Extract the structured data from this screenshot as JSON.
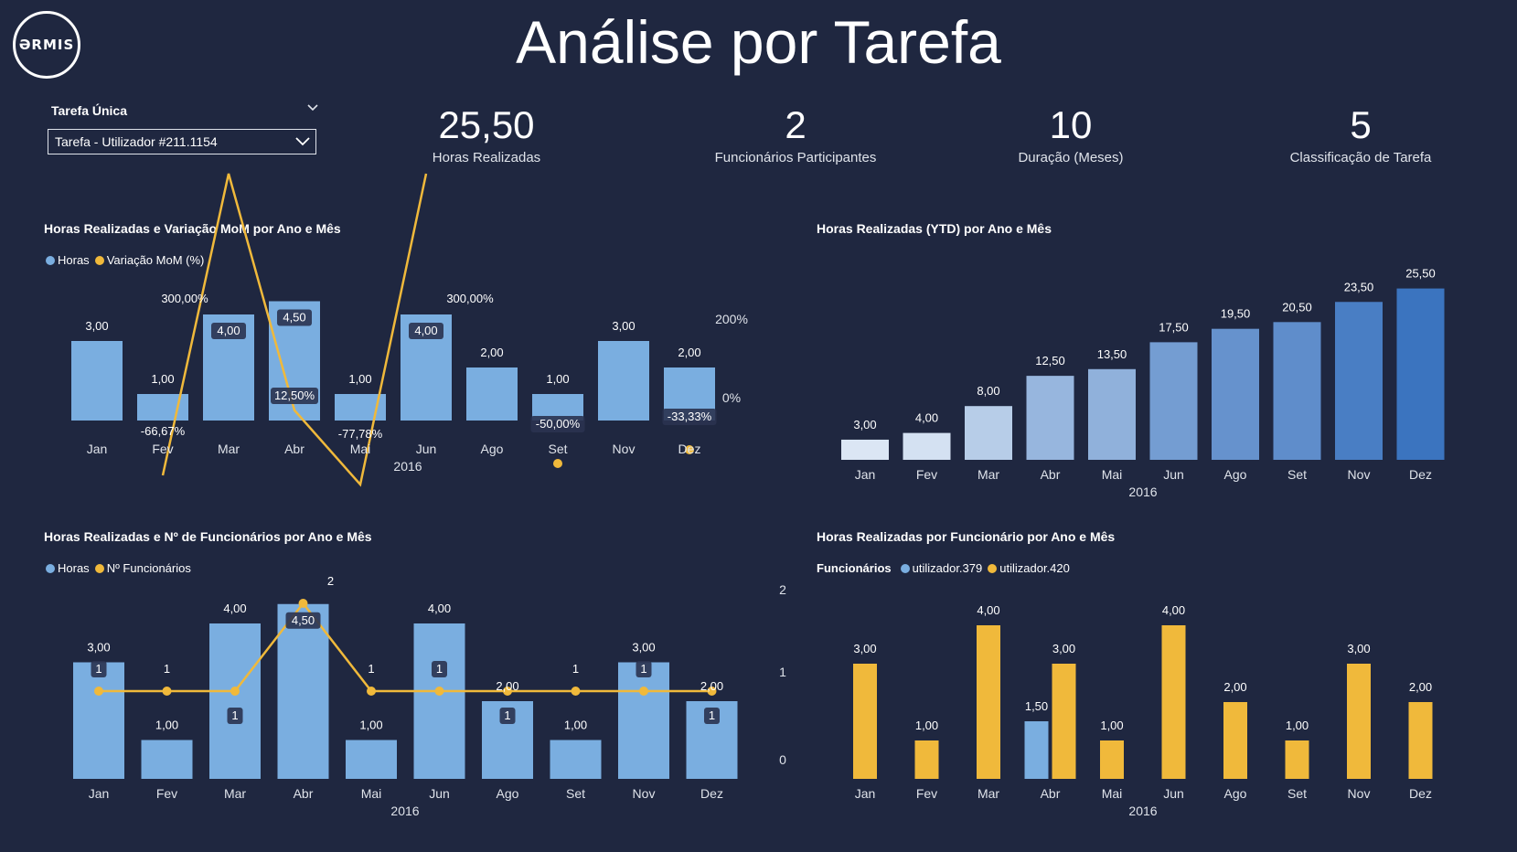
{
  "header": {
    "logo_text": "ƏRMIS",
    "title": "Análise por Tarefa"
  },
  "slicer": {
    "label": "Tarefa Única",
    "value": "Tarefa - Utilizador #211.1154"
  },
  "kpis": [
    {
      "value": "25,50",
      "label": "Horas Realizadas"
    },
    {
      "value": "2",
      "label": "Funcionários Participantes"
    },
    {
      "value": "10",
      "label": "Duração (Meses)"
    },
    {
      "value": "5",
      "label": "Classificação de Tarefa"
    }
  ],
  "colors": {
    "background": "#1f2740",
    "bar_blue": "#7aaee0",
    "line_yellow": "#f0b93b",
    "ytd_light": "#dbe6f4",
    "ytd_dark": "#3b74bf"
  },
  "chart_data": [
    {
      "type": "bar",
      "title": "Horas Realizadas e Variação MoM por Ano e Mês",
      "legend": [
        "Horas",
        "Variação MoM (%)"
      ],
      "categories": [
        "Jan",
        "Fev",
        "Mar",
        "Abr",
        "Mai",
        "Jun",
        "Ago",
        "Set",
        "Nov",
        "Dez"
      ],
      "year": "2016",
      "series": [
        {
          "name": "Horas",
          "type": "bar",
          "values": [
            3,
            1,
            4,
            4.5,
            1,
            4,
            2,
            1,
            3,
            2
          ],
          "labels": [
            "3,00",
            "1,00",
            "4,00",
            "4,50",
            "1,00",
            "4,00",
            "2,00",
            "1,00",
            "3,00",
            "2,00"
          ]
        },
        {
          "name": "Variação MoM (%)",
          "type": "line",
          "values": [
            null,
            -66.67,
            300,
            12.5,
            -77.78,
            300,
            null,
            -50,
            null,
            -33.33
          ],
          "labels": [
            "",
            "-66,67%",
            "300,00%",
            "12,50%",
            "-77,78%",
            "300,00%",
            "",
            "-50,00%",
            "",
            "-33,33%"
          ]
        }
      ],
      "ylabel_right_ticks": [
        "200%",
        "0%"
      ],
      "ylim": [
        0,
        5
      ],
      "y2lim": [
        -100,
        300
      ]
    },
    {
      "type": "bar",
      "title": "Horas Realizadas (YTD) por Ano e Mês",
      "categories": [
        "Jan",
        "Fev",
        "Mar",
        "Abr",
        "Mai",
        "Jun",
        "Ago",
        "Set",
        "Nov",
        "Dez"
      ],
      "year": "2016",
      "values": [
        3,
        4,
        8,
        12.5,
        13.5,
        17.5,
        19.5,
        20.5,
        23.5,
        25.5
      ],
      "labels": [
        "3,00",
        "4,00",
        "8,00",
        "12,50",
        "13,50",
        "17,50",
        "19,50",
        "20,50",
        "23,50",
        "25,50"
      ],
      "ylim": [
        0,
        28
      ]
    },
    {
      "type": "bar",
      "title": "Horas Realizadas e Nº de Funcionários por Ano e Mês",
      "legend": [
        "Horas",
        "Nº Funcionários"
      ],
      "categories": [
        "Jan",
        "Fev",
        "Mar",
        "Abr",
        "Mai",
        "Jun",
        "Ago",
        "Set",
        "Nov",
        "Dez"
      ],
      "year": "2016",
      "series": [
        {
          "name": "Horas",
          "type": "bar",
          "values": [
            3,
            1,
            4,
            4.5,
            1,
            4,
            2,
            1,
            3,
            2
          ],
          "labels": [
            "3,00",
            "1,00",
            "4,00",
            "4,50",
            "1,00",
            "4,00",
            "2,00",
            "1,00",
            "3,00",
            "2,00"
          ]
        },
        {
          "name": "Nº Funcionários",
          "type": "line",
          "values": [
            1,
            1,
            1,
            2,
            1,
            1,
            1,
            1,
            1,
            1
          ],
          "labels": [
            "1",
            "1",
            "1",
            "2",
            "1",
            "1",
            "1",
            "1",
            "1",
            "1"
          ]
        }
      ],
      "ylabel_right_ticks": [
        "2",
        "1",
        "0"
      ],
      "ylim": [
        0,
        4.5
      ],
      "y2lim": [
        0,
        2
      ]
    },
    {
      "type": "bar",
      "title": "Horas Realizadas por Funcionário por Ano e Mês",
      "legend_title": "Funcionários",
      "legend": [
        "utilizador.379",
        "utilizador.420"
      ],
      "categories": [
        "Jan",
        "Fev",
        "Mar",
        "Abr",
        "Mai",
        "Jun",
        "Ago",
        "Set",
        "Nov",
        "Dez"
      ],
      "year": "2016",
      "series": [
        {
          "name": "utilizador.379",
          "values": [
            0,
            0,
            0,
            1.5,
            0,
            0,
            0,
            0,
            0,
            0
          ],
          "labels": [
            "",
            "",
            "",
            "1,50",
            "",
            "",
            "",
            "",
            "",
            ""
          ]
        },
        {
          "name": "utilizador.420",
          "values": [
            3,
            1,
            4,
            3,
            1,
            4,
            2,
            1,
            3,
            2
          ],
          "labels": [
            "3,00",
            "1,00",
            "4,00",
            "3,00",
            "1,00",
            "4,00",
            "2,00",
            "1,00",
            "3,00",
            "2,00"
          ]
        }
      ],
      "ylim": [
        0,
        4
      ]
    }
  ]
}
